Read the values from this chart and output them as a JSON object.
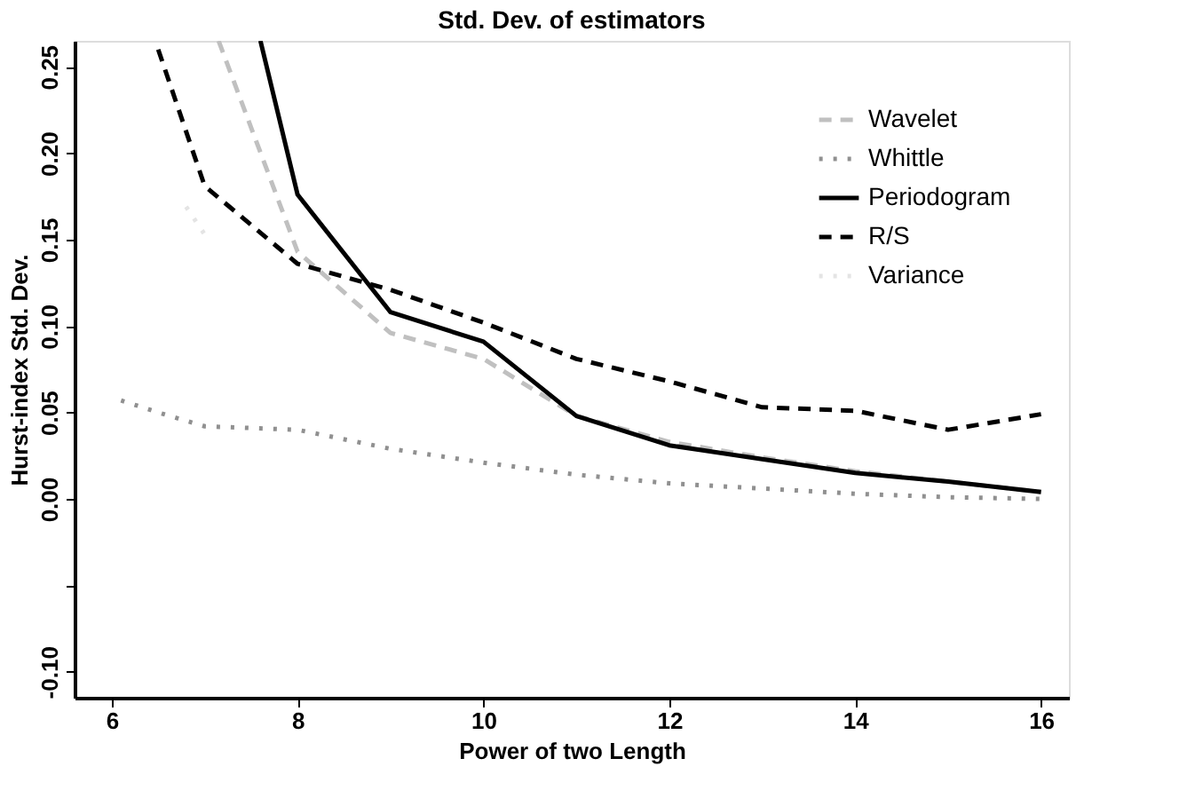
{
  "chart_data": {
    "type": "line",
    "title": "Std. Dev. of estimators",
    "xlabel": "Power of two Length",
    "ylabel": "Hurst-index Std. Dev.",
    "xlim": [
      5.6,
      16.3
    ],
    "ylim": [
      -0.115,
      0.265
    ],
    "xticks": [
      6,
      8,
      10,
      12,
      14,
      16
    ],
    "yticks": [
      {
        "value": -0.1,
        "label": "-0.10"
      },
      {
        "value": -0.05,
        "label": null
      },
      {
        "value": 0,
        "label": "0.00"
      },
      {
        "value": 0.05,
        "label": "0.05"
      },
      {
        "value": 0.1,
        "label": "0.10"
      },
      {
        "value": 0.15,
        "label": "0.15"
      },
      {
        "value": 0.2,
        "label": "0.20"
      },
      {
        "value": 0.25,
        "label": "0.25"
      }
    ],
    "grid": false,
    "legend": "top right",
    "series": [
      {
        "name": "Wavelet",
        "color": "#c0c0c0",
        "line_style": "dashed",
        "x": [
          7.15,
          8,
          9,
          10,
          11,
          12,
          13,
          14,
          15,
          16
        ],
        "values": [
          0.265,
          0.143,
          0.096,
          0.081,
          0.048,
          0.033,
          0.024,
          0.016,
          0.01,
          0.004
        ]
      },
      {
        "name": "Whittle",
        "color": "#909090",
        "line_style": "dotted",
        "x": [
          6.1,
          6.5,
          7,
          8,
          9,
          10,
          11,
          12,
          13,
          14,
          15,
          16
        ],
        "values": [
          0.057,
          0.05,
          0.042,
          0.04,
          0.029,
          0.021,
          0.014,
          0.009,
          0.006,
          0.003,
          0.001,
          0.0
        ]
      },
      {
        "name": "Periodogram",
        "color": "#000000",
        "line_style": "solid",
        "x": [
          7.6,
          8,
          9,
          10,
          11,
          12,
          13,
          14,
          15,
          16
        ],
        "values": [
          0.265,
          0.176,
          0.108,
          0.091,
          0.048,
          0.031,
          0.023,
          0.015,
          0.01,
          0.004
        ]
      },
      {
        "name": "R/S",
        "color": "#000000",
        "line_style": "dashed",
        "x": [
          6.5,
          7,
          8,
          9,
          10,
          11,
          12,
          13,
          14,
          15,
          16
        ],
        "values": [
          0.26,
          0.181,
          0.136,
          0.121,
          0.102,
          0.081,
          0.068,
          0.053,
          0.051,
          0.04,
          0.049
        ]
      },
      {
        "name": "Variance",
        "color": "#e4e4e4",
        "line_style": "dotted",
        "x": [
          6.8,
          7.05
        ],
        "values": [
          0.169,
          0.149
        ]
      }
    ]
  }
}
